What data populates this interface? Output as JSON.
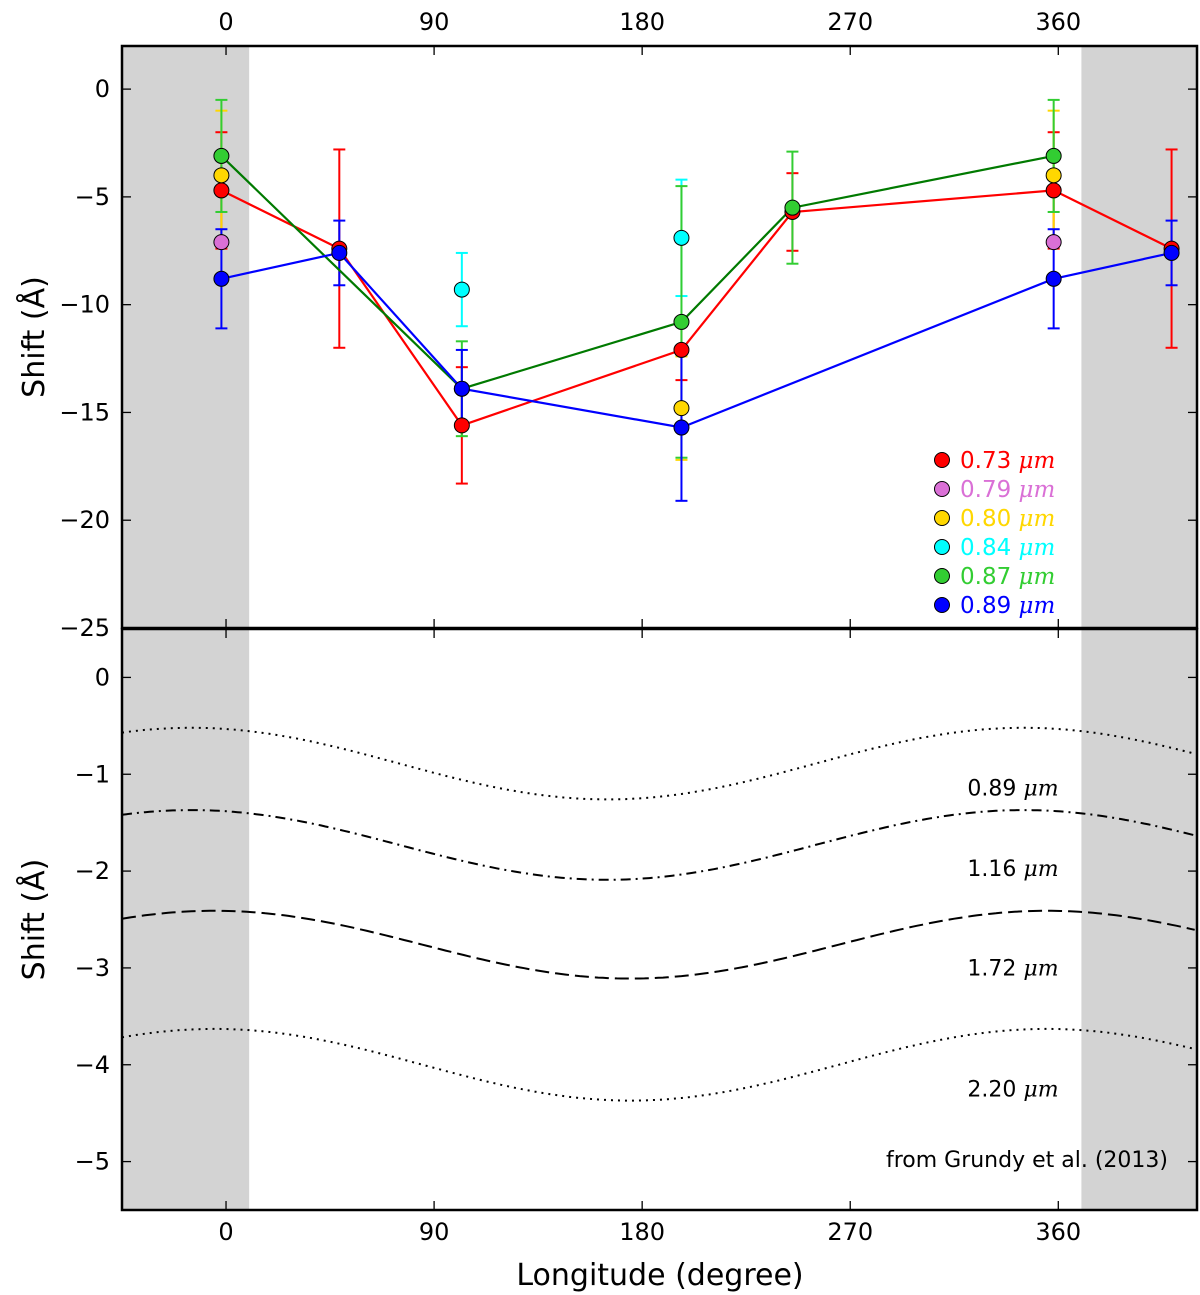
{
  "chart_data": [
    {
      "type": "line",
      "panel": "top",
      "xlabel": "",
      "ylabel": "Shift (Å)",
      "xlim": [
        -45,
        420
      ],
      "ylim": [
        -25,
        2
      ],
      "x_ticks": [
        0,
        90,
        180,
        270,
        360
      ],
      "x_tick_labels": [
        "0",
        "90",
        "180",
        "270",
        "360"
      ],
      "y_ticks": [
        0,
        -5,
        -10,
        -15,
        -20,
        -25
      ],
      "y_tick_labels": [
        "0",
        "−5",
        "−10",
        "−15",
        "−20",
        "−25"
      ],
      "shaded_x_ranges": [
        [
          -45,
          10
        ],
        [
          370,
          420
        ]
      ],
      "series": [
        {
          "name": "0.73 μm",
          "number": "0.73",
          "unit": "μm",
          "color": "#ff0000",
          "connected": true,
          "points": [
            {
              "x": -2,
              "y": -4.7,
              "err": 2.7
            },
            {
              "x": 49,
              "y": -7.4,
              "err": 4.6
            },
            {
              "x": 102,
              "y": -15.6,
              "err": 2.7
            },
            {
              "x": 197,
              "y": -12.1,
              "err": 1.4
            },
            {
              "x": 245,
              "y": -5.7,
              "err": 1.8
            },
            {
              "x": 358,
              "y": -4.7,
              "err": 2.7
            },
            {
              "x": 409,
              "y": -7.4,
              "err": 4.6
            }
          ]
        },
        {
          "name": "0.79 μm",
          "number": "0.79",
          "unit": "μm",
          "color": "#da70d6",
          "connected": false,
          "points": [
            {
              "x": -2,
              "y": -7.1,
              "err": 0
            },
            {
              "x": 358,
              "y": -7.1,
              "err": 0
            }
          ]
        },
        {
          "name": "0.80 μm",
          "number": "0.80",
          "unit": "μm",
          "color": "#ffd700",
          "connected": false,
          "points": [
            {
              "x": -2,
              "y": -4.0,
              "err": 3.0
            },
            {
              "x": 197,
              "y": -14.8,
              "err": 2.4
            },
            {
              "x": 358,
              "y": -4.0,
              "err": 3.0
            }
          ]
        },
        {
          "name": "0.84 μm",
          "number": "0.84",
          "unit": "μm",
          "color": "#00ffff",
          "connected": false,
          "points": [
            {
              "x": 102,
              "y": -9.3,
              "err": 1.7
            },
            {
              "x": 197,
              "y": -6.9,
              "err": 2.7
            }
          ]
        },
        {
          "name": "0.87 μm",
          "number": "0.87",
          "unit": "μm",
          "color": "#32cd32",
          "connected": true,
          "line_color": "#007a00",
          "points": [
            {
              "x": -2,
              "y": -3.1,
              "err": 2.6
            },
            {
              "x": 102,
              "y": -13.9,
              "err": 2.2
            },
            {
              "x": 197,
              "y": -10.8,
              "err": 6.3
            },
            {
              "x": 245,
              "y": -5.5,
              "err": 2.6
            },
            {
              "x": 358,
              "y": -3.1,
              "err": 2.6
            }
          ]
        },
        {
          "name": "0.89 μm",
          "number": "0.89",
          "unit": "μm",
          "color": "#0000ff",
          "connected": true,
          "points": [
            {
              "x": -2,
              "y": -8.8,
              "err": 2.3
            },
            {
              "x": 49,
              "y": -7.6,
              "err": 1.5
            },
            {
              "x": 102,
              "y": -13.9,
              "err": 1.8
            },
            {
              "x": 197,
              "y": -15.7,
              "err": 3.4
            },
            {
              "x": 358,
              "y": -8.8,
              "err": 2.3
            },
            {
              "x": 409,
              "y": -7.6,
              "err": 1.5
            }
          ]
        }
      ],
      "legend_position": "lower-right"
    },
    {
      "type": "line",
      "panel": "bottom",
      "xlabel": "Longitude (degree)",
      "ylabel": "Shift (Å)",
      "xlim": [
        -45,
        420
      ],
      "ylim": [
        -5.5,
        0.5
      ],
      "x_ticks": [
        0,
        90,
        180,
        270,
        360
      ],
      "x_tick_labels": [
        "0",
        "90",
        "180",
        "270",
        "360"
      ],
      "y_ticks": [
        0,
        -1,
        -2,
        -3,
        -4,
        -5
      ],
      "y_tick_labels": [
        "0",
        "−1",
        "−2",
        "−3",
        "−4",
        "−5"
      ],
      "shaded_x_ranges": [
        [
          -45,
          10
        ],
        [
          370,
          420
        ]
      ],
      "series": [
        {
          "name": "0.89 μm",
          "number": "0.89",
          "unit": "μm",
          "style": "dotted",
          "mean": -0.89,
          "amplitude": 0.37,
          "peak_x": -15,
          "period": 360
        },
        {
          "name": "1.16 μm",
          "number": "1.16",
          "unit": "μm",
          "style": "dashdot",
          "mean": -1.73,
          "amplitude": 0.36,
          "peak_x": -15,
          "period": 360
        },
        {
          "name": "1.72 μm",
          "number": "1.72",
          "unit": "μm",
          "style": "dashed",
          "mean": -2.76,
          "amplitude": 0.35,
          "peak_x": -5,
          "period": 360
        },
        {
          "name": "2.20 μm",
          "number": "2.20",
          "unit": "μm",
          "style": "dotted",
          "mean": -4.0,
          "amplitude": 0.37,
          "peak_x": -5,
          "period": 360
        }
      ],
      "annotation": "from Grundy et al. (2013)"
    }
  ]
}
